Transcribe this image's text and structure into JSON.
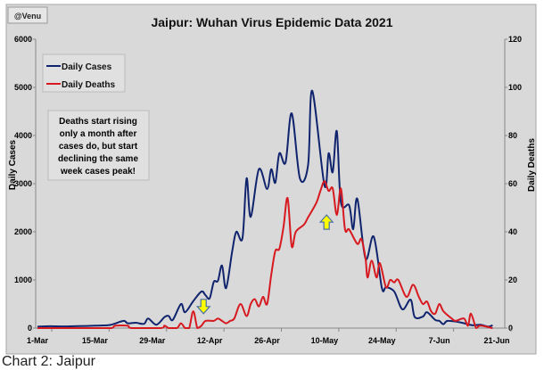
{
  "chart_data": {
    "type": "line",
    "title": "Jaipur: Wuhan Virus Epidemic Data 2021",
    "credit": "@Venu",
    "caption": "Chart 2: Jaipur",
    "x_unit": "days since 1-Mar-2021",
    "xlim": [
      0,
      112
    ],
    "x_ticks": [
      {
        "day": 0,
        "label": "1-Mar"
      },
      {
        "day": 14,
        "label": "15-Mar"
      },
      {
        "day": 28,
        "label": "29-Mar"
      },
      {
        "day": 42,
        "label": "12-Apr"
      },
      {
        "day": 56,
        "label": "26-Apr"
      },
      {
        "day": 70,
        "label": "10-May"
      },
      {
        "day": 84,
        "label": "24-May"
      },
      {
        "day": 98,
        "label": "7-Jun"
      },
      {
        "day": 112,
        "label": "21-Jun"
      }
    ],
    "y_left": {
      "label": "Daily Cases",
      "lim": [
        0,
        6000
      ],
      "ticks": [
        "0",
        "1000",
        "2000",
        "3000",
        "4000",
        "5000",
        "6000"
      ]
    },
    "y_right": {
      "label": "Daily Deaths",
      "lim": [
        0,
        120
      ],
      "ticks": [
        "0",
        "20",
        "40",
        "60",
        "80",
        "100",
        "120"
      ]
    },
    "legend": {
      "placement": "top-left",
      "entries": [
        "Daily Cases",
        "Daily Deaths"
      ]
    },
    "annotation": [
      "Deaths start rising",
      "only a month after",
      "cases do, but start",
      "declining the same",
      "week cases peak!"
    ],
    "arrows": [
      {
        "direction": "down",
        "day": 40.5,
        "axis": "right",
        "value": 6
      },
      {
        "direction": "up",
        "day": 70.5,
        "axis": "right",
        "value": 47
      }
    ],
    "series": [
      {
        "name": "Daily Cases",
        "axis": "left",
        "color": "#10246e",
        "points": [
          [
            0,
            30
          ],
          [
            3,
            40
          ],
          [
            6,
            35
          ],
          [
            9,
            40
          ],
          [
            12,
            45
          ],
          [
            14,
            50
          ],
          [
            16,
            55
          ],
          [
            18,
            70
          ],
          [
            21,
            150
          ],
          [
            22,
            100
          ],
          [
            24,
            110
          ],
          [
            26,
            90
          ],
          [
            27,
            200
          ],
          [
            29,
            70
          ],
          [
            31,
            230
          ],
          [
            32,
            250
          ],
          [
            33,
            170
          ],
          [
            35,
            500
          ],
          [
            36,
            330
          ],
          [
            38,
            560
          ],
          [
            40,
            760
          ],
          [
            41,
            680
          ],
          [
            42,
            620
          ],
          [
            43,
            960
          ],
          [
            44,
            980
          ],
          [
            45,
            1300
          ],
          [
            46,
            830
          ],
          [
            47.5,
            1600
          ],
          [
            48.5,
            2000
          ],
          [
            50,
            1870
          ],
          [
            51,
            3110
          ],
          [
            52,
            2310
          ],
          [
            54,
            3300
          ],
          [
            56,
            2890
          ],
          [
            57,
            3300
          ],
          [
            58,
            3020
          ],
          [
            59,
            3630
          ],
          [
            60.5,
            3440
          ],
          [
            62,
            4460
          ],
          [
            64,
            3110
          ],
          [
            66,
            3390
          ],
          [
            67,
            4930
          ],
          [
            70,
            2960
          ],
          [
            71,
            3630
          ],
          [
            72,
            3240
          ],
          [
            73,
            4090
          ],
          [
            74,
            2610
          ],
          [
            76,
            2550
          ],
          [
            77,
            2055
          ],
          [
            78,
            2685
          ],
          [
            80,
            1444
          ],
          [
            82,
            1900
          ],
          [
            84,
            830
          ],
          [
            85,
            850
          ],
          [
            87,
            760
          ],
          [
            89,
            390
          ],
          [
            91,
            590
          ],
          [
            92,
            230
          ],
          [
            94,
            240
          ],
          [
            95,
            330
          ],
          [
            97,
            170
          ],
          [
            98,
            150
          ],
          [
            99,
            80
          ],
          [
            100,
            150
          ],
          [
            103,
            120
          ],
          [
            106,
            60
          ],
          [
            108,
            70
          ],
          [
            110,
            30
          ],
          [
            111,
            60
          ]
        ]
      },
      {
        "name": "Daily Deaths",
        "axis": "right",
        "color": "#d71920",
        "points": [
          [
            0,
            0
          ],
          [
            10,
            0
          ],
          [
            14,
            0
          ],
          [
            18,
            0
          ],
          [
            19,
            1
          ],
          [
            22,
            1
          ],
          [
            23,
            0
          ],
          [
            30,
            0
          ],
          [
            31,
            1
          ],
          [
            32,
            0
          ],
          [
            34,
            0
          ],
          [
            35,
            2
          ],
          [
            36,
            0
          ],
          [
            37,
            0
          ],
          [
            38,
            7
          ],
          [
            39,
            0
          ],
          [
            40,
            1
          ],
          [
            41,
            3
          ],
          [
            43,
            3
          ],
          [
            44,
            4
          ],
          [
            45,
            3
          ],
          [
            46,
            2
          ],
          [
            47,
            3
          ],
          [
            48,
            4
          ],
          [
            49.5,
            10
          ],
          [
            51,
            5
          ],
          [
            52,
            10
          ],
          [
            53,
            12
          ],
          [
            54,
            9
          ],
          [
            55,
            13
          ],
          [
            56,
            10
          ],
          [
            57,
            22
          ],
          [
            58,
            32
          ],
          [
            59,
            33
          ],
          [
            60,
            42
          ],
          [
            61,
            54
          ],
          [
            62,
            34
          ],
          [
            63,
            40
          ],
          [
            65,
            43
          ],
          [
            66,
            46
          ],
          [
            68,
            52
          ],
          [
            69,
            57
          ],
          [
            70,
            61
          ],
          [
            71,
            57
          ],
          [
            72,
            58
          ],
          [
            73,
            47
          ],
          [
            74,
            58
          ],
          [
            75,
            41
          ],
          [
            76,
            41
          ],
          [
            78,
            35
          ],
          [
            79,
            37
          ],
          [
            80,
            29
          ],
          [
            80.5,
            21
          ],
          [
            81.5,
            28
          ],
          [
            82.7,
            21
          ],
          [
            83.5,
            27
          ],
          [
            85,
            17
          ],
          [
            86,
            20
          ],
          [
            87,
            19
          ],
          [
            88,
            20
          ],
          [
            90,
            13
          ],
          [
            91.6,
            18
          ],
          [
            93,
            13
          ],
          [
            94,
            10
          ],
          [
            95,
            11
          ],
          [
            96,
            7
          ],
          [
            97,
            6
          ],
          [
            98,
            10
          ],
          [
            99,
            7
          ],
          [
            101,
            4
          ],
          [
            102,
            3
          ],
          [
            104,
            4
          ],
          [
            105,
            1
          ],
          [
            105.7,
            6
          ],
          [
            107,
            0
          ],
          [
            108,
            1
          ],
          [
            111,
            0
          ]
        ]
      }
    ]
  }
}
